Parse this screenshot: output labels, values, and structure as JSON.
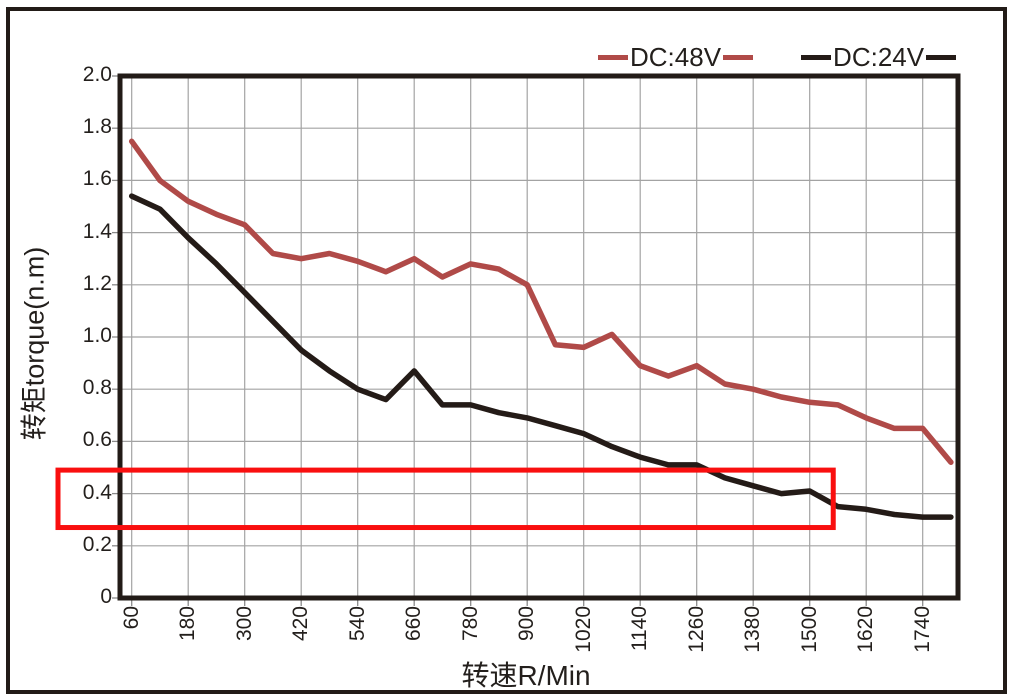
{
  "window": {
    "background": "#ffffff",
    "border_color": "#221b17",
    "text_color": "#231f1c",
    "grid_color": "#a3a3a3"
  },
  "legend": {
    "items": [
      {
        "label": "DC:48V",
        "color": "#b04a48"
      },
      {
        "label": "DC:24V",
        "color": "#241b17"
      }
    ]
  },
  "chart_data": {
    "type": "line",
    "title": "",
    "xlabel": "转速R/Min",
    "ylabel": "转矩torque(n.m)",
    "grid": true,
    "legend_position": "top-right",
    "ylim": [
      0,
      2.0
    ],
    "x_tick_values": [
      60,
      180,
      300,
      420,
      540,
      660,
      780,
      900,
      1020,
      1140,
      1260,
      1380,
      1500,
      1620,
      1740
    ],
    "x_tick_labels": [
      "60",
      "180",
      "300",
      "420",
      "540",
      "660",
      "780",
      "900",
      "1020",
      "1140",
      "1260",
      "1380",
      "1500",
      "1620",
      "1740"
    ],
    "y_tick_values": [
      2.0,
      1.8,
      1.6,
      1.4,
      1.2,
      1.0,
      0.8,
      0.6,
      0.4,
      0.2,
      0
    ],
    "y_tick_labels": [
      "2.0",
      "1.8",
      "1.6",
      "1.4",
      "1.2",
      "1.0",
      "0.8",
      "0.6",
      "0.4",
      "0.2",
      "0"
    ],
    "x": [
      60,
      120,
      180,
      240,
      300,
      360,
      420,
      480,
      540,
      600,
      660,
      720,
      780,
      840,
      900,
      960,
      1020,
      1080,
      1140,
      1200,
      1260,
      1320,
      1380,
      1440,
      1500,
      1560,
      1620,
      1680,
      1740,
      1800
    ],
    "series": [
      {
        "name": "DC:48V",
        "color": "#b04a48",
        "values": [
          1.75,
          1.6,
          1.52,
          1.47,
          1.43,
          1.32,
          1.3,
          1.32,
          1.29,
          1.25,
          1.3,
          1.23,
          1.28,
          1.26,
          1.2,
          0.97,
          0.96,
          1.01,
          0.89,
          0.85,
          0.89,
          0.82,
          0.8,
          0.77,
          0.75,
          0.74,
          0.69,
          0.65,
          0.65,
          0.52
        ]
      },
      {
        "name": "DC:24V",
        "color": "#241b17",
        "values": [
          1.54,
          1.49,
          1.38,
          1.28,
          1.17,
          1.06,
          0.95,
          0.87,
          0.8,
          0.76,
          0.87,
          0.74,
          0.74,
          0.71,
          0.69,
          0.66,
          0.63,
          0.58,
          0.54,
          0.51,
          0.51,
          0.46,
          0.43,
          0.4,
          0.41,
          0.35,
          0.34,
          0.32,
          0.31,
          0.31
        ]
      }
    ],
    "highlight_box": {
      "torque_from": 0.27,
      "torque_to": 0.49,
      "speed_to": 1550,
      "color": "#f90f0f"
    }
  }
}
